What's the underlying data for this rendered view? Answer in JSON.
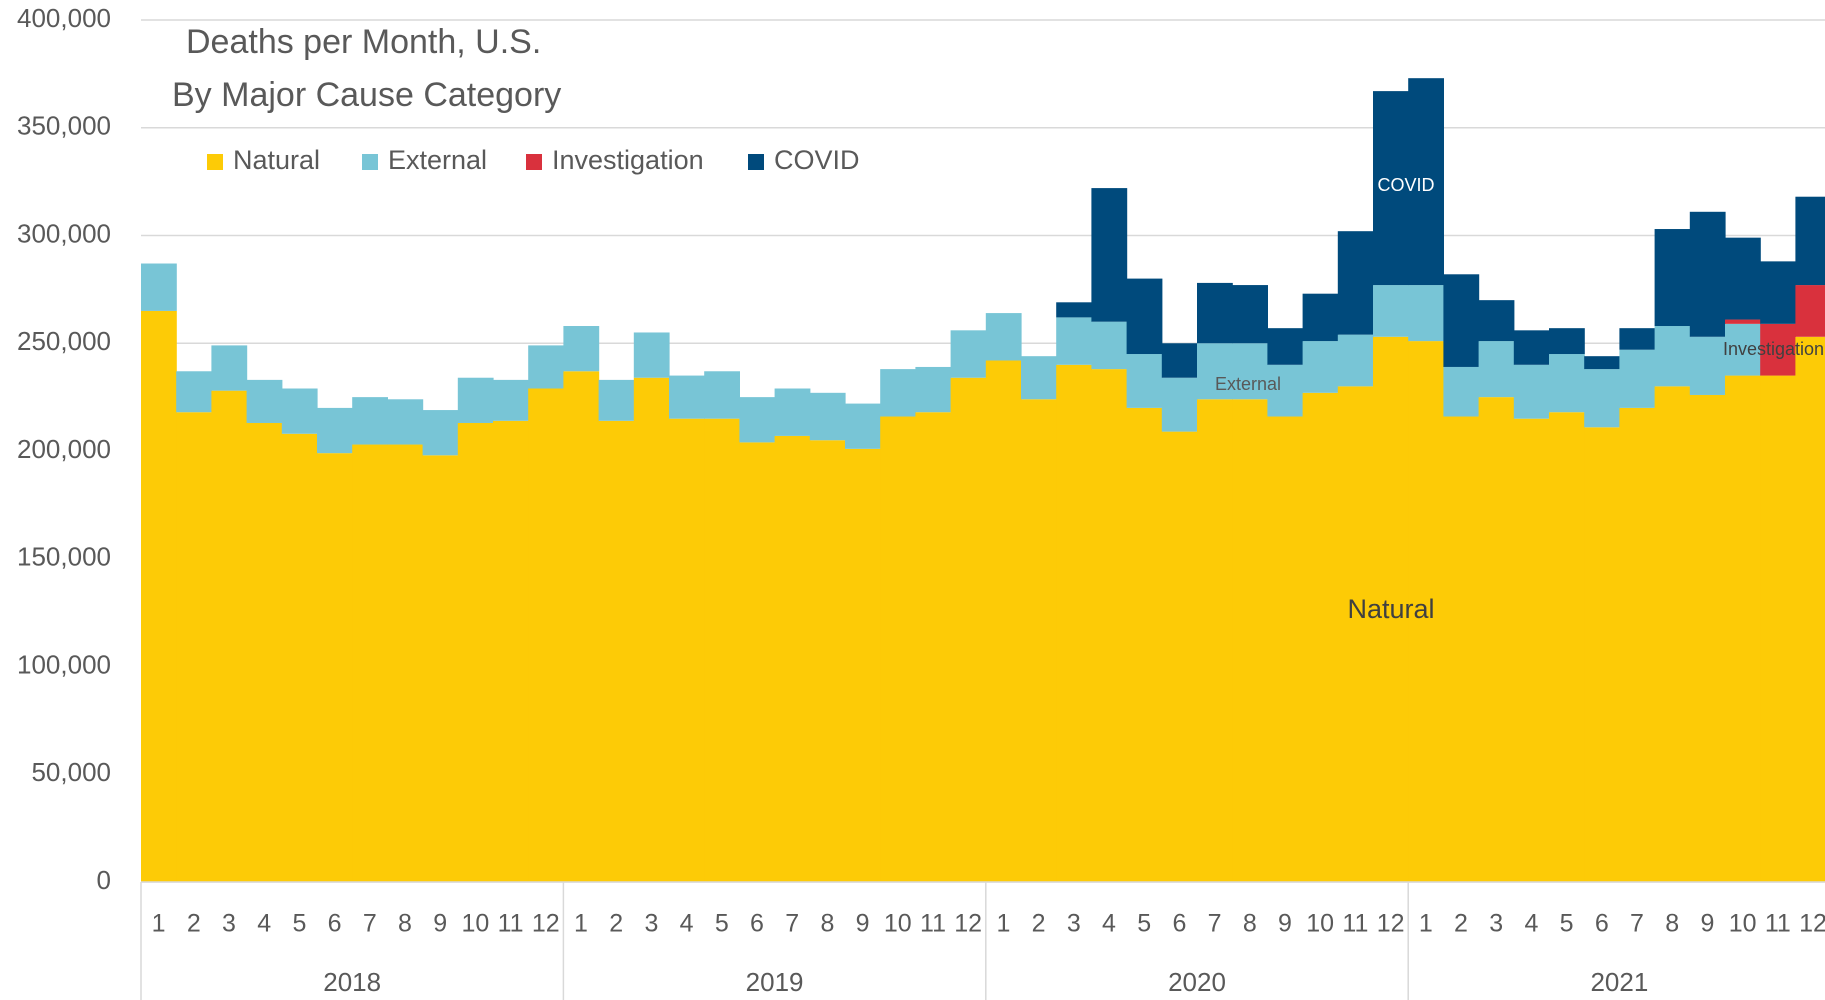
{
  "chart_data": {
    "type": "stacked_step_area",
    "title": "Deaths per Month, U.S.",
    "subtitle": "By Major Cause Category",
    "categories": [
      "1",
      "2",
      "3",
      "4",
      "5",
      "6",
      "7",
      "8",
      "9",
      "10",
      "11",
      "12",
      "1",
      "2",
      "3",
      "4",
      "5",
      "6",
      "7",
      "8",
      "9",
      "10",
      "11",
      "12",
      "1",
      "2",
      "3",
      "4",
      "5",
      "6",
      "7",
      "8",
      "9",
      "10",
      "11",
      "12",
      "1",
      "2",
      "3",
      "4",
      "5",
      "6",
      "7",
      "8",
      "9",
      "10",
      "11",
      "12"
    ],
    "groups": [
      "2018",
      "2019",
      "2020",
      "2021"
    ],
    "series": [
      {
        "name": "Natural",
        "color": "#FDCB06",
        "values": [
          265000,
          218000,
          228000,
          213000,
          208000,
          199000,
          203000,
          203000,
          198000,
          213000,
          214000,
          229000,
          237000,
          214000,
          234000,
          215000,
          215000,
          204000,
          207000,
          205000,
          201000,
          216000,
          218000,
          234000,
          242000,
          224000,
          240000,
          238000,
          220000,
          209000,
          224000,
          224000,
          216000,
          227000,
          230000,
          253000,
          251000,
          216000,
          225000,
          215000,
          218000,
          211000,
          220000,
          230000,
          226000,
          235000,
          235000,
          253000
        ]
      },
      {
        "name": "External",
        "color": "#78C5D6",
        "values": [
          22000,
          19000,
          21000,
          20000,
          21000,
          21000,
          22000,
          21000,
          21000,
          21000,
          19000,
          20000,
          21000,
          19000,
          21000,
          20000,
          22000,
          21000,
          22000,
          22000,
          21000,
          22000,
          21000,
          22000,
          22000,
          20000,
          22000,
          22000,
          25000,
          25000,
          26000,
          26000,
          24000,
          24000,
          24000,
          24000,
          26000,
          23000,
          26000,
          25000,
          27000,
          27000,
          27000,
          28000,
          27000,
          24000,
          0,
          0
        ]
      },
      {
        "name": "Investigation",
        "color": "#D9313D",
        "values": [
          0,
          0,
          0,
          0,
          0,
          0,
          0,
          0,
          0,
          0,
          0,
          0,
          0,
          0,
          0,
          0,
          0,
          0,
          0,
          0,
          0,
          0,
          0,
          0,
          0,
          0,
          0,
          0,
          0,
          0,
          0,
          0,
          0,
          0,
          0,
          0,
          0,
          0,
          0,
          0,
          0,
          0,
          0,
          0,
          0,
          2000,
          24000,
          24000
        ]
      },
      {
        "name": "COVID",
        "color": "#004A7C",
        "values": [
          0,
          0,
          0,
          0,
          0,
          0,
          0,
          0,
          0,
          0,
          0,
          0,
          0,
          0,
          0,
          0,
          0,
          0,
          0,
          0,
          0,
          0,
          0,
          0,
          0,
          0,
          7000,
          62000,
          35000,
          16000,
          28000,
          27000,
          17000,
          22000,
          48000,
          90000,
          96000,
          43000,
          19000,
          16000,
          12000,
          6000,
          10000,
          45000,
          58000,
          38000,
          29000,
          41000
        ]
      }
    ],
    "annotations": [
      "COVID",
      "External",
      "Natural",
      "Investigation"
    ],
    "ylim": [
      0,
      400000
    ],
    "yticks": [
      {
        "value": 0,
        "label": "0"
      },
      {
        "value": 50000,
        "label": "50,000"
      },
      {
        "value": 100000,
        "label": "100,000"
      },
      {
        "value": 150000,
        "label": "150,000"
      },
      {
        "value": 200000,
        "label": "200,000"
      },
      {
        "value": 250000,
        "label": "250,000"
      },
      {
        "value": 300000,
        "label": "300,000"
      },
      {
        "value": 350000,
        "label": "350,000"
      },
      {
        "value": 400000,
        "label": "400,000"
      }
    ],
    "grid": true
  }
}
